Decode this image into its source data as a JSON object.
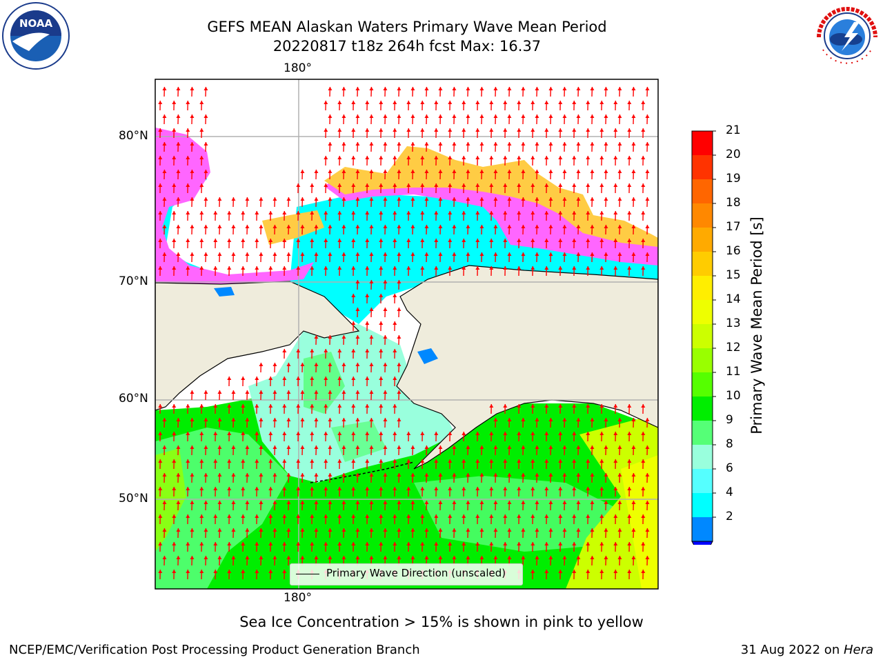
{
  "header": {
    "title_line1": "GEFS MEAN Alaskan Waters Primary Wave Mean Period",
    "title_line2": "20220817 t18z 264h fcst   Max: 16.37"
  },
  "logos": {
    "left": "NOAA",
    "right": "NATIONAL WEATHER SERVICE"
  },
  "map": {
    "lon_label_top": "180°",
    "lon_label_bottom": "180°",
    "lat_labels": [
      "80°N",
      "70°N",
      "60°N",
      "50°N"
    ],
    "legend_label": "Primary Wave Direction (unscaled)",
    "arrow_color": "#ff0000",
    "land_color": "#efecdc"
  },
  "colorbar": {
    "title": "Primary Wave Mean Period [s]",
    "ticks": [
      "21",
      "20",
      "19",
      "18",
      "17",
      "16",
      "15",
      "14",
      "13",
      "12",
      "11",
      "10",
      "9",
      "8",
      "6",
      "4",
      "2"
    ],
    "colors": [
      "#ff0000",
      "#ff3300",
      "#ff6600",
      "#ff8800",
      "#ffaa00",
      "#ffcc00",
      "#ffee00",
      "#eeff00",
      "#ccff00",
      "#99ff00",
      "#55ff00",
      "#00ee00",
      "#55ff77",
      "#99ffdd",
      "#55ffff",
      "#00ffff",
      "#0088ff"
    ],
    "under_color": "#0000ff"
  },
  "caption": "Sea Ice Concentration > 15% is shown in pink to yellow",
  "footer": {
    "left": "NCEP/EMC/Verification Post Processing Product Generation Branch",
    "right_date": "31 Aug 2022 on ",
    "right_machine": "Hera"
  }
}
